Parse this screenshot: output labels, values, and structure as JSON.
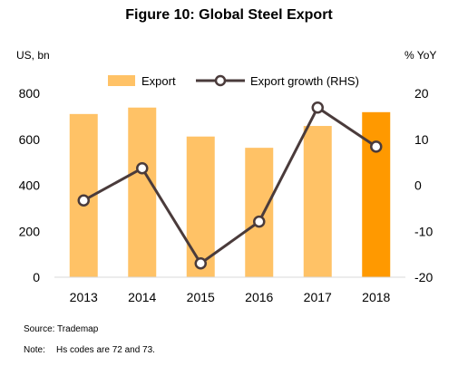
{
  "title": "Figure 10: Global Steel Export",
  "left_unit": "US, bn",
  "right_unit": "% YoY",
  "source_text": "Source: Trademap",
  "note_label": "Note:",
  "note_text": "Hs codes are 72 and 73.",
  "chart_data": {
    "type": "bar",
    "categories": [
      "2013",
      "2014",
      "2015",
      "2016",
      "2017",
      "2018"
    ],
    "series": [
      {
        "name": "Export",
        "type": "bar",
        "axis": "left",
        "values": [
          710,
          738,
          612,
          563,
          658,
          718
        ],
        "color": "#ffc266",
        "highlight_index": 5,
        "highlight_color": "#ff9900"
      },
      {
        "name": "Export growth (RHS)",
        "type": "line",
        "axis": "right",
        "values": [
          -3.3,
          3.7,
          -17.0,
          -7.9,
          16.9,
          8.4
        ],
        "color": "#4a3b3b",
        "marker_fill": "#ffffff"
      }
    ],
    "y_left": {
      "min": 0,
      "max": 800,
      "ticks": [
        0,
        200,
        400,
        600,
        800
      ]
    },
    "y_right": {
      "min": -20,
      "max": 20,
      "ticks": [
        -20,
        -10,
        0,
        10,
        20
      ]
    },
    "legend_position": "top",
    "grid": false
  }
}
